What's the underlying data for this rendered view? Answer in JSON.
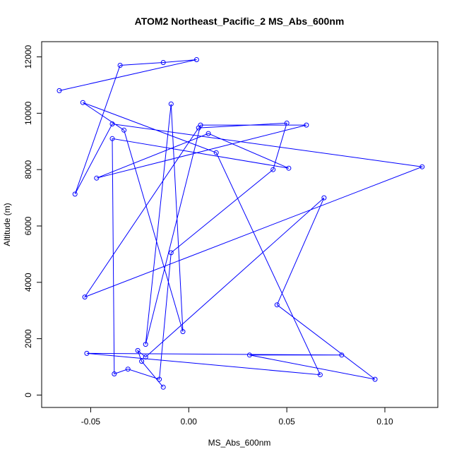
{
  "chart_data": {
    "type": "line",
    "title": "ATOM2 Northeast_Pacific_2 MS_Abs_600nm",
    "xlabel": "MS_Abs_600nm",
    "ylabel": "Altitude (m)",
    "xlim": [
      -0.075,
      0.127
    ],
    "ylim": [
      -440,
      12540
    ],
    "xticks": [
      -0.05,
      0.0,
      0.05,
      0.1
    ],
    "xtick_labels": [
      "-0.05",
      "0.00",
      "0.05",
      "0.10"
    ],
    "yticks": [
      0,
      2000,
      4000,
      6000,
      8000,
      10000,
      12000
    ],
    "ytick_labels": [
      "0",
      "2000",
      "4000",
      "6000",
      "8000",
      "10000",
      "12000"
    ],
    "grid": false,
    "legend": "none",
    "color": "#0000ff",
    "series": [
      {
        "x": [
          -0.013,
          -0.024,
          -0.026,
          -0.022,
          0.069,
          0.045,
          0.095,
          0.031,
          0.078,
          -0.052,
          0.067,
          0.014,
          -0.054,
          -0.033,
          -0.003,
          -0.009,
          -0.022,
          0.006,
          0.06,
          -0.047,
          0.01,
          0.051,
          -0.039,
          -0.038,
          -0.031,
          -0.015,
          -0.009,
          0.043,
          0.05,
          0.005,
          -0.053,
          0.119,
          -0.039,
          -0.058,
          -0.035,
          -0.013,
          0.004,
          -0.066
        ],
        "y": [
          280,
          1200,
          1580,
          1350,
          7000,
          3200,
          560,
          1420,
          1420,
          1480,
          720,
          8600,
          10380,
          9400,
          2250,
          10330,
          1800,
          9580,
          9580,
          7700,
          9280,
          8050,
          9100,
          750,
          920,
          560,
          5050,
          8000,
          9650,
          9480,
          3480,
          8100,
          9620,
          7130,
          11700,
          11800,
          11900,
          10800
        ]
      }
    ]
  }
}
